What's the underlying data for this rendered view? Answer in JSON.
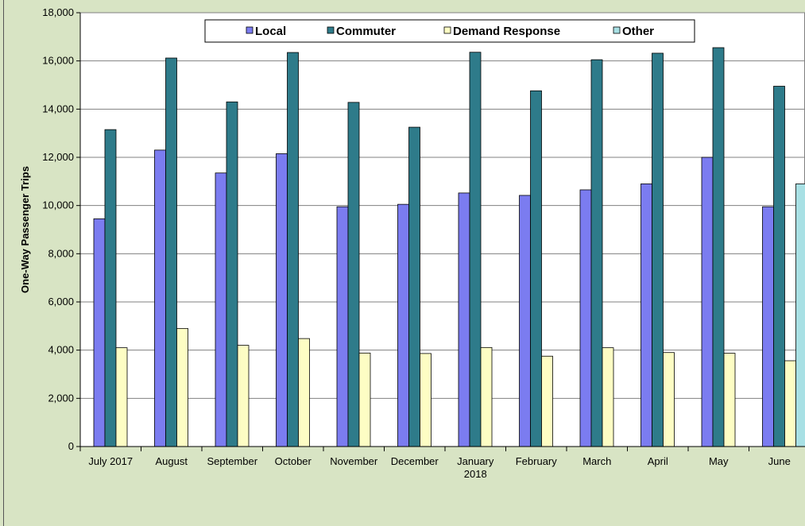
{
  "chart_data": {
    "type": "bar",
    "title": "",
    "xlabel": "",
    "ylabel": "One-Way Passenger Trips",
    "ylim": [
      0,
      18000
    ],
    "yticks": [
      0,
      2000,
      4000,
      6000,
      8000,
      10000,
      12000,
      14000,
      16000,
      18000
    ],
    "ytick_labels": [
      "0",
      "2,000",
      "4,000",
      "6,000",
      "8,000",
      "10,000",
      "12,000",
      "14,000",
      "16,000",
      "18,000"
    ],
    "grid": true,
    "legend_position": "top",
    "categories": [
      [
        "July 2017"
      ],
      [
        "August"
      ],
      [
        "September"
      ],
      [
        "October"
      ],
      [
        "November"
      ],
      [
        "December"
      ],
      [
        "January",
        "2018"
      ],
      [
        "February"
      ],
      [
        "March"
      ],
      [
        "April"
      ],
      [
        "May"
      ],
      [
        "June"
      ]
    ],
    "series": [
      {
        "name": "Local",
        "color": "#7b7cf0",
        "values": [
          9450,
          12300,
          11350,
          12150,
          9950,
          10050,
          10520,
          10420,
          10650,
          10900,
          12000,
          9950
        ]
      },
      {
        "name": "Commuter",
        "color": "#2e7b8a",
        "values": [
          13150,
          16120,
          14300,
          16350,
          14280,
          13250,
          16360,
          14760,
          16050,
          16320,
          16550,
          14950
        ]
      },
      {
        "name": "Demand Response",
        "color": "#fdfdc4",
        "values": [
          4100,
          4900,
          4200,
          4480,
          3880,
          3860,
          4110,
          3750,
          4100,
          3900,
          3870,
          3560
        ]
      },
      {
        "name": "Other",
        "color": "#a8e0e4",
        "values": [
          null,
          null,
          null,
          null,
          null,
          null,
          null,
          null,
          null,
          null,
          null,
          10900
        ]
      }
    ]
  }
}
